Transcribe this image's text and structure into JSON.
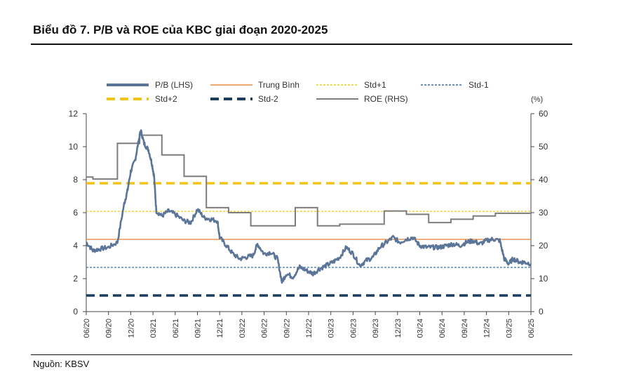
{
  "title": "Biểu đồ 7. P/B và ROE của KBC giai đoạn 2020-2025",
  "source": "Nguồn: KBSV",
  "chart_data": {
    "type": "line",
    "right_unit": "(%)",
    "x_labels": [
      "06/20",
      "09/20",
      "12/20",
      "03/21",
      "06/21",
      "09/21",
      "12/21",
      "03/22",
      "06/22",
      "09/22",
      "12/22",
      "03/23",
      "06/23",
      "09/23",
      "12/23",
      "03/24",
      "06/24",
      "09/24",
      "12/24",
      "03/25",
      "06/25"
    ],
    "yleft": {
      "min": 0,
      "max": 12,
      "ticks": [
        0,
        2,
        4,
        6,
        8,
        10,
        12
      ]
    },
    "yright": {
      "min": 0,
      "max": 60,
      "ticks": [
        0,
        10,
        20,
        30,
        40,
        50,
        60
      ]
    },
    "legend": [
      "P/B (LHS)",
      "Trung Bình",
      "Std+1",
      "Std-1",
      "Std+2",
      "Std-2",
      "ROE (RHS)"
    ],
    "colors": {
      "pb": "#5b7599",
      "mean": "#ec8a44",
      "std1": "#ebcd1c",
      "stdm1": "#3b6ea4",
      "std2": "#f0c419",
      "stdm2": "#1c3d5e",
      "roe": "#7d7d7d"
    },
    "stats": {
      "mean": 4.38,
      "std_plus_1": 6.08,
      "std_minus_1": 2.68,
      "std_plus_2": 7.78,
      "std_minus_2": 0.98
    },
    "pb": [
      {
        "x": 0,
        "y": 4.2
      },
      {
        "x": 0.3,
        "y": 3.7
      },
      {
        "x": 0.6,
        "y": 3.8
      },
      {
        "x": 1.0,
        "y": 3.9
      },
      {
        "x": 1.4,
        "y": 4.2
      },
      {
        "x": 1.7,
        "y": 6.5
      },
      {
        "x": 1.85,
        "y": 7.3
      },
      {
        "x": 2.0,
        "y": 8.5
      },
      {
        "x": 2.2,
        "y": 9.2
      },
      {
        "x": 2.35,
        "y": 10.3
      },
      {
        "x": 2.45,
        "y": 11.0
      },
      {
        "x": 2.6,
        "y": 10.2
      },
      {
        "x": 2.8,
        "y": 9.8
      },
      {
        "x": 2.95,
        "y": 9.0
      },
      {
        "x": 3.05,
        "y": 8.2
      },
      {
        "x": 3.15,
        "y": 6.1
      },
      {
        "x": 3.4,
        "y": 5.8
      },
      {
        "x": 3.7,
        "y": 6.1
      },
      {
        "x": 4.0,
        "y": 5.9
      },
      {
        "x": 4.4,
        "y": 5.5
      },
      {
        "x": 4.7,
        "y": 5.4
      },
      {
        "x": 5.0,
        "y": 6.2
      },
      {
        "x": 5.3,
        "y": 5.7
      },
      {
        "x": 5.6,
        "y": 5.6
      },
      {
        "x": 5.9,
        "y": 5.5
      },
      {
        "x": 6.0,
        "y": 4.5
      },
      {
        "x": 6.3,
        "y": 4.0
      },
      {
        "x": 6.6,
        "y": 3.5
      },
      {
        "x": 6.9,
        "y": 3.2
      },
      {
        "x": 7.2,
        "y": 3.3
      },
      {
        "x": 7.5,
        "y": 3.4
      },
      {
        "x": 7.7,
        "y": 4.1
      },
      {
        "x": 8.0,
        "y": 3.5
      },
      {
        "x": 8.3,
        "y": 3.6
      },
      {
        "x": 8.6,
        "y": 3.2
      },
      {
        "x": 8.8,
        "y": 1.8
      },
      {
        "x": 9.0,
        "y": 2.3
      },
      {
        "x": 9.3,
        "y": 2.1
      },
      {
        "x": 9.6,
        "y": 2.7
      },
      {
        "x": 9.9,
        "y": 2.5
      },
      {
        "x": 10.2,
        "y": 2.3
      },
      {
        "x": 10.5,
        "y": 2.6
      },
      {
        "x": 10.8,
        "y": 2.8
      },
      {
        "x": 11.1,
        "y": 3.0
      },
      {
        "x": 11.4,
        "y": 3.3
      },
      {
        "x": 11.7,
        "y": 3.9
      },
      {
        "x": 12.0,
        "y": 3.5
      },
      {
        "x": 12.3,
        "y": 2.8
      },
      {
        "x": 12.6,
        "y": 3.1
      },
      {
        "x": 12.9,
        "y": 3.3
      },
      {
        "x": 13.2,
        "y": 3.9
      },
      {
        "x": 13.5,
        "y": 4.2
      },
      {
        "x": 13.8,
        "y": 4.5
      },
      {
        "x": 14.1,
        "y": 4.2
      },
      {
        "x": 14.4,
        "y": 4.4
      },
      {
        "x": 14.7,
        "y": 4.5
      },
      {
        "x": 15.0,
        "y": 4.0
      },
      {
        "x": 15.3,
        "y": 3.9
      },
      {
        "x": 15.6,
        "y": 3.9
      },
      {
        "x": 15.9,
        "y": 3.9
      },
      {
        "x": 16.2,
        "y": 4.0
      },
      {
        "x": 16.5,
        "y": 4.1
      },
      {
        "x": 16.8,
        "y": 4.0
      },
      {
        "x": 17.1,
        "y": 4.2
      },
      {
        "x": 17.4,
        "y": 4.3
      },
      {
        "x": 17.7,
        "y": 4.1
      },
      {
        "x": 18.0,
        "y": 4.3
      },
      {
        "x": 18.3,
        "y": 4.4
      },
      {
        "x": 18.6,
        "y": 4.3
      },
      {
        "x": 18.8,
        "y": 3.2
      },
      {
        "x": 19.0,
        "y": 2.9
      },
      {
        "x": 19.2,
        "y": 3.2
      },
      {
        "x": 19.5,
        "y": 3.0
      },
      {
        "x": 19.7,
        "y": 3.0
      },
      {
        "x": 20.0,
        "y": 2.9
      }
    ],
    "roe": [
      {
        "x": 0,
        "y": 40.8
      },
      {
        "x": 0.3,
        "y": 40.8
      },
      {
        "x": 0.3,
        "y": 40.2
      },
      {
        "x": 1.4,
        "y": 40.2
      },
      {
        "x": 1.4,
        "y": 51.0
      },
      {
        "x": 2.4,
        "y": 51.0
      },
      {
        "x": 2.4,
        "y": 53.5
      },
      {
        "x": 3.4,
        "y": 53.5
      },
      {
        "x": 3.4,
        "y": 47.5
      },
      {
        "x": 4.4,
        "y": 47.5
      },
      {
        "x": 4.4,
        "y": 41.0
      },
      {
        "x": 5.4,
        "y": 41.0
      },
      {
        "x": 5.4,
        "y": 31.5
      },
      {
        "x": 6.4,
        "y": 31.5
      },
      {
        "x": 6.4,
        "y": 30.0
      },
      {
        "x": 7.4,
        "y": 30.0
      },
      {
        "x": 7.4,
        "y": 26.0
      },
      {
        "x": 9.4,
        "y": 26.0
      },
      {
        "x": 9.4,
        "y": 31.5
      },
      {
        "x": 10.4,
        "y": 31.5
      },
      {
        "x": 10.4,
        "y": 26.0
      },
      {
        "x": 11.4,
        "y": 26.0
      },
      {
        "x": 11.4,
        "y": 26.5
      },
      {
        "x": 13.4,
        "y": 26.5
      },
      {
        "x": 13.4,
        "y": 30.5
      },
      {
        "x": 14.4,
        "y": 30.5
      },
      {
        "x": 14.4,
        "y": 29.5
      },
      {
        "x": 15.4,
        "y": 29.5
      },
      {
        "x": 15.4,
        "y": 27.0
      },
      {
        "x": 16.4,
        "y": 27.0
      },
      {
        "x": 16.4,
        "y": 28.0
      },
      {
        "x": 17.4,
        "y": 28.0
      },
      {
        "x": 17.4,
        "y": 29.0
      },
      {
        "x": 18.4,
        "y": 29.0
      },
      {
        "x": 18.4,
        "y": 29.8
      },
      {
        "x": 20.0,
        "y": 29.8
      }
    ]
  }
}
